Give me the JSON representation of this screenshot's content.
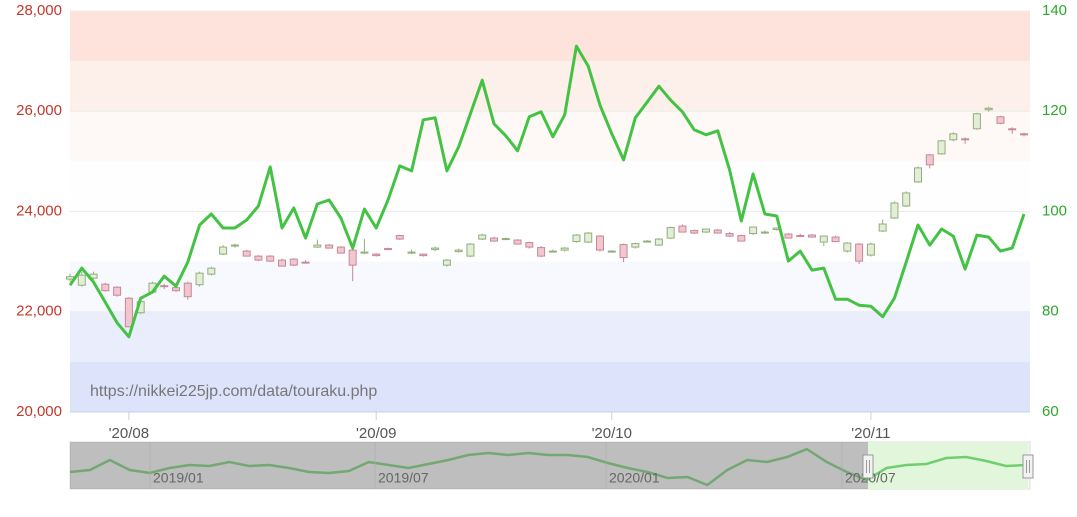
{
  "chart_data": {
    "type": "candlestick",
    "categories": [
      null,
      null,
      null,
      null,
      null,
      "'20/08",
      null,
      null,
      null,
      null,
      null,
      null,
      null,
      null,
      null,
      null,
      null,
      null,
      null,
      null,
      null,
      null,
      null,
      null,
      null,
      null,
      "'20/09",
      null,
      null,
      null,
      null,
      null,
      null,
      null,
      null,
      null,
      null,
      null,
      null,
      null,
      null,
      null,
      null,
      null,
      null,
      null,
      "'20/10",
      null,
      null,
      null,
      null,
      null,
      null,
      null,
      null,
      null,
      null,
      null,
      null,
      null,
      null,
      null,
      null,
      null,
      null,
      null,
      null,
      null,
      "'20/11",
      null,
      null,
      null,
      null,
      null,
      null,
      null,
      null,
      null,
      null,
      null,
      null,
      null
    ],
    "open": [
      22650,
      22530,
      22670,
      22550,
      22490,
      22270,
      21980,
      22390,
      22520,
      22480,
      22570,
      22540,
      22750,
      23150,
      23310,
      23210,
      23110,
      23110,
      23030,
      23050,
      22990,
      23290,
      23330,
      23290,
      23230,
      23180,
      23150,
      23260,
      23520,
      23170,
      23150,
      23240,
      22930,
      23200,
      23110,
      23450,
      23470,
      23450,
      23430,
      23380,
      23280,
      23200,
      23230,
      23400,
      23390,
      23510,
      23210,
      23340,
      23290,
      23410,
      23330,
      23470,
      23710,
      23620,
      23590,
      23630,
      23560,
      23520,
      23560,
      23570,
      23640,
      23550,
      23520,
      23530,
      23390,
      23490,
      23210,
      23350,
      23130,
      23610,
      23870,
      24110,
      24590,
      25130,
      25150,
      25430,
      25450,
      25650,
      26030,
      25890,
      25650,
      25550
    ],
    "high": [
      22760,
      22800,
      22800,
      22580,
      22510,
      22290,
      22230,
      22600,
      22560,
      22510,
      22600,
      22800,
      22900,
      23330,
      23360,
      23240,
      23130,
      23130,
      23060,
      23070,
      23030,
      23440,
      23350,
      23310,
      23260,
      23450,
      23170,
      23280,
      23540,
      23240,
      23160,
      23300,
      23050,
      23260,
      23370,
      23560,
      23500,
      23480,
      23450,
      23400,
      23310,
      23240,
      23290,
      23550,
      23590,
      23530,
      23230,
      23360,
      23380,
      23430,
      23470,
      23700,
      23740,
      23640,
      23660,
      23650,
      23590,
      23540,
      23700,
      23620,
      23680,
      23570,
      23560,
      23550,
      23520,
      23520,
      23390,
      23370,
      23380,
      23840,
      24200,
      24400,
      24900,
      25150,
      25430,
      25580,
      25480,
      25970,
      26090,
      25910,
      25680,
      25570
    ],
    "low": [
      22600,
      22500,
      22640,
      22400,
      22300,
      21690,
      21950,
      22370,
      22450,
      22400,
      22240,
      22500,
      22720,
      23130,
      23280,
      23100,
      23010,
      22990,
      22900,
      22910,
      22960,
      23270,
      23260,
      23160,
      22610,
      23150,
      23100,
      23230,
      23430,
      23150,
      23100,
      23210,
      22900,
      23180,
      23090,
      23430,
      23400,
      23430,
      23340,
      23260,
      23090,
      23180,
      23200,
      23380,
      23370,
      23200,
      23190,
      22990,
      23260,
      23390,
      23310,
      23450,
      23580,
      23550,
      23570,
      23560,
      23490,
      23400,
      23530,
      23550,
      23620,
      23460,
      23490,
      23480,
      23310,
      23390,
      23180,
      22950,
      23100,
      23590,
      23850,
      24090,
      24570,
      24860,
      25130,
      25400,
      25350,
      25630,
      25990,
      25740,
      25550,
      25500
    ],
    "close": [
      22700,
      22730,
      22750,
      22420,
      22330,
      21700,
      22200,
      22570,
      22500,
      22420,
      22300,
      22770,
      22870,
      23290,
      23330,
      23110,
      23030,
      23010,
      22910,
      22930,
      22970,
      23330,
      23270,
      23170,
      22930,
      23190,
      23120,
      23250,
      23450,
      23190,
      23120,
      23270,
      23030,
      23230,
      23350,
      23530,
      23410,
      23460,
      23350,
      23290,
      23110,
      23210,
      23270,
      23530,
      23570,
      23230,
      23210,
      23080,
      23360,
      23410,
      23450,
      23680,
      23590,
      23570,
      23650,
      23570,
      23510,
      23410,
      23690,
      23590,
      23670,
      23470,
      23510,
      23490,
      23510,
      23400,
      23370,
      23010,
      23350,
      23750,
      24170,
      24370,
      24870,
      24930,
      25410,
      25550,
      25430,
      25950,
      26060,
      25760,
      25640,
      25530
    ],
    "up_color": "#e2eed5",
    "up_edge": "#94ad7c",
    "down_color": "#f3c6cf",
    "down_edge": "#c48a97",
    "ylim": [
      20000,
      28000
    ],
    "yticks": [
      {
        "value": 20000,
        "label": "20,000"
      },
      {
        "value": 22000,
        "label": "22,000"
      },
      {
        "value": 24000,
        "label": "24,000"
      },
      {
        "value": 26000,
        "label": "26,000"
      },
      {
        "value": 28000,
        "label": "28,000"
      }
    ],
    "bands": [
      {
        "from": 27000,
        "to": 28000,
        "color": "#fde3dc"
      },
      {
        "from": 26000,
        "to": 27000,
        "color": "#fdefe9"
      },
      {
        "from": 25000,
        "to": 26000,
        "color": "#fef9f7"
      },
      {
        "from": 24000,
        "to": 25000,
        "color": "#fefefe"
      },
      {
        "from": 22000,
        "to": 23000,
        "color": "#f8f9fe"
      },
      {
        "from": 21000,
        "to": 22000,
        "color": "#e9edfc"
      },
      {
        "from": 20000,
        "to": 21000,
        "color": "#dce3fb"
      }
    ],
    "series": [
      {
        "type": "line",
        "axis": "y2",
        "color": "#44c244",
        "values": [
          85.3,
          88.7,
          85.9,
          81.9,
          77.8,
          75.0,
          82.7,
          83.9,
          87.1,
          85.1,
          89.9,
          97.3,
          99.5,
          96.7,
          96.7,
          98.3,
          101.1,
          108.9,
          96.7,
          100.7,
          94.7,
          101.5,
          102.3,
          98.7,
          92.7,
          100.5,
          96.7,
          102.3,
          109.1,
          108.1,
          118.3,
          118.7,
          108.1,
          112.9,
          119.5,
          126.2,
          117.5,
          115.1,
          112.1,
          118.9,
          119.9,
          114.9,
          119.3,
          133.0,
          129.0,
          121.2,
          115.5,
          110.3,
          118.7,
          121.8,
          125.0,
          122.2,
          119.9,
          116.3,
          115.3,
          116.1,
          108.3,
          98.1,
          107.5,
          99.5,
          99.1,
          90.1,
          92.1,
          88.3,
          88.7,
          82.5,
          82.5,
          81.3,
          81.1,
          79.0,
          82.7,
          89.9,
          97.3,
          93.3,
          96.5,
          95.1,
          88.5,
          95.3,
          94.9,
          92.1,
          92.7,
          99.5
        ]
      }
    ],
    "y2lim": [
      60,
      140
    ],
    "y2ticks": [
      60,
      80,
      100,
      120,
      140
    ],
    "annotation": "https://nikkei225jp.com/data/touraku.php",
    "navigator": {
      "labels": [
        "2019/01",
        "2019/07",
        "2020/01",
        "2020/07"
      ],
      "color": "#6fcf6f",
      "values": [
        88.9,
        92.3,
        109.3,
        92.3,
        87.2,
        95.7,
        100.8,
        99.1,
        105.9,
        99.1,
        100.8,
        95.7,
        88.9,
        87.2,
        90.6,
        105.9,
        100.8,
        95.7,
        102.5,
        109.3,
        117.8,
        121.2,
        117.8,
        121.2,
        117.8,
        117.8,
        114.4,
        104.2,
        95.7,
        88.9,
        78.7,
        80.4,
        66.8,
        92.3,
        109.3,
        105.9,
        114.4,
        128.0,
        105.9,
        88.9,
        75.3,
        95.7,
        100.8,
        102.5,
        112.7,
        114.4,
        107.6,
        99.1,
        100.8
      ]
    }
  }
}
